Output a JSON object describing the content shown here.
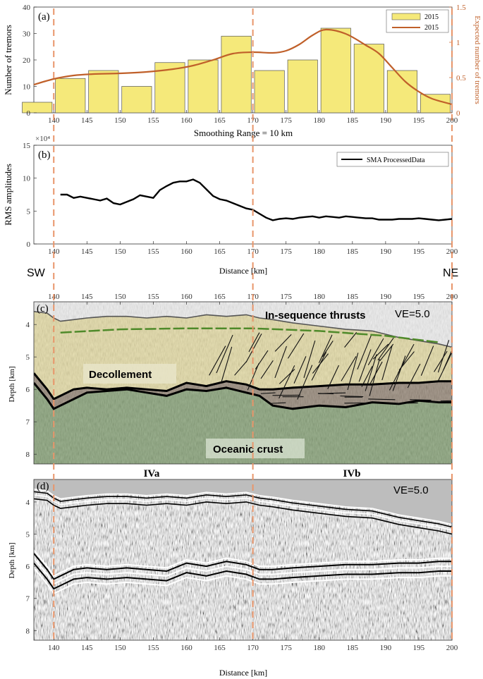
{
  "colors": {
    "bar_fill": "#f5e97a",
    "bar_stroke": "#555555",
    "curve": "#c0602a",
    "right_axis": "#c0602a",
    "guide": "#e8956a",
    "rms_line": "#000000",
    "sediment": "#e6dca0",
    "decollement": "#8f7f6e",
    "crust": "#7f9c6e",
    "green_horizon": "#4f8a2a"
  },
  "chart_data": [
    {
      "id": "a",
      "type": "bar",
      "panel_label": "(a)",
      "x": [
        137.5,
        142.5,
        147.5,
        152.5,
        157.5,
        162.5,
        167.5,
        172.5,
        177.5,
        182.5,
        187.5,
        192.5,
        197.5
      ],
      "values": [
        4,
        13,
        16,
        10,
        19,
        20,
        29,
        16,
        20,
        32,
        26,
        16,
        7
      ],
      "xlim": [
        137,
        200
      ],
      "ylim": [
        0,
        40
      ],
      "y_ticks": [
        "0",
        "10",
        "20",
        "30",
        "40"
      ],
      "x_ticks": [
        "140",
        "145",
        "150",
        "155",
        "160",
        "165",
        "170",
        "175",
        "180",
        "185",
        "190",
        "195",
        "200"
      ],
      "ylabel": "Number of tremors",
      "xlabel": "Smoothing Range = 10 km",
      "legend_position": "top-right",
      "series": [
        {
          "name": "2015",
          "type": "bar"
        },
        {
          "name": "2015",
          "type": "line",
          "axis": "right",
          "x": [
            137,
            140,
            143,
            146,
            150,
            154,
            158,
            161,
            164,
            167,
            170,
            173,
            175,
            177,
            179,
            181,
            184,
            187,
            189,
            191,
            193,
            195,
            197,
            200
          ],
          "y": [
            0.4,
            0.48,
            0.53,
            0.55,
            0.56,
            0.58,
            0.62,
            0.67,
            0.75,
            0.84,
            0.86,
            0.85,
            0.88,
            0.97,
            1.1,
            1.18,
            1.12,
            0.96,
            0.84,
            0.64,
            0.44,
            0.3,
            0.2,
            0.12
          ]
        }
      ],
      "y2lim": [
        0,
        1.5
      ],
      "y2_ticks": [
        "0",
        "0.5",
        "1",
        "1.5"
      ],
      "y2label": "Expected number of tremors"
    },
    {
      "id": "b",
      "type": "line",
      "panel_label": "(b)",
      "exponent": "×10⁴",
      "xlim": [
        137,
        200
      ],
      "ylim": [
        0,
        15
      ],
      "y_ticks": [
        "0",
        "5",
        "10",
        "15"
      ],
      "x_ticks": [
        "140",
        "145",
        "150",
        "155",
        "160",
        "165",
        "170",
        "175",
        "180",
        "185",
        "190",
        "195",
        "200"
      ],
      "ylabel": "RMS amplitudes",
      "xlabel": "Distance [km]",
      "legend_position": "top-right",
      "series": [
        {
          "name": "SMA ProcessedData",
          "x": [
            141,
            142,
            143,
            144,
            145,
            146,
            147,
            148,
            149,
            150,
            151,
            152,
            153,
            154,
            155,
            156,
            157,
            158,
            159,
            160,
            161,
            162,
            163,
            164,
            165,
            166,
            167,
            168,
            169,
            170,
            171,
            172,
            173,
            174,
            175,
            176,
            177,
            178,
            179,
            180,
            181,
            182,
            183,
            184,
            185,
            186,
            187,
            188,
            189,
            190,
            191,
            192,
            193,
            194,
            195,
            196,
            197,
            198,
            199,
            200
          ],
          "y": [
            7.5,
            7.5,
            7.0,
            7.2,
            7.0,
            6.8,
            6.6,
            6.9,
            6.2,
            6.0,
            6.4,
            6.8,
            7.4,
            7.2,
            7.0,
            8.2,
            8.8,
            9.3,
            9.5,
            9.5,
            9.8,
            9.3,
            8.3,
            7.3,
            6.8,
            6.6,
            6.2,
            5.8,
            5.4,
            5.2,
            4.6,
            4.0,
            3.6,
            3.8,
            3.9,
            3.8,
            4.0,
            4.1,
            4.2,
            4.0,
            4.2,
            4.1,
            4.0,
            4.2,
            4.1,
            4.0,
            3.9,
            3.9,
            3.7,
            3.7,
            3.7,
            3.8,
            3.8,
            3.8,
            3.9,
            3.8,
            3.7,
            3.6,
            3.7,
            3.8
          ]
        }
      ]
    },
    {
      "id": "c",
      "type": "area",
      "panel_label": "(c)",
      "xlim": [
        137,
        200
      ],
      "ylim": [
        8.3,
        3.3
      ],
      "y_ticks": [
        "4",
        "5",
        "6",
        "7",
        "8"
      ],
      "x_ticks": [
        "140",
        "145",
        "150",
        "155",
        "160",
        "165",
        "170",
        "175",
        "180",
        "185",
        "190",
        "195",
        "200"
      ],
      "x_ticks_position": "top",
      "ylabel": "Depth [km]",
      "x": [
        137,
        139,
        140,
        141,
        143,
        145,
        148,
        151,
        154,
        157,
        160,
        163,
        166,
        169,
        171,
        173,
        176,
        180,
        184,
        188,
        192,
        195,
        198,
        200
      ],
      "seafloor": [
        3.6,
        3.65,
        3.8,
        3.9,
        3.85,
        3.8,
        3.75,
        3.75,
        3.8,
        3.75,
        3.8,
        3.7,
        3.75,
        3.7,
        3.8,
        3.85,
        3.95,
        4.05,
        4.15,
        4.2,
        4.4,
        4.5,
        4.6,
        4.7
      ],
      "decollement_top": [
        5.5,
        6.0,
        6.3,
        6.2,
        6.0,
        5.95,
        6.0,
        5.95,
        6.0,
        6.05,
        5.8,
        5.9,
        5.75,
        5.85,
        6.0,
        6.0,
        5.95,
        5.9,
        5.85,
        5.85,
        5.8,
        5.8,
        5.75,
        5.75
      ],
      "decollement_base": [
        5.8,
        6.3,
        6.6,
        6.5,
        6.3,
        6.1,
        6.05,
        6.0,
        6.1,
        6.2,
        6.0,
        6.05,
        5.95,
        6.1,
        6.2,
        6.5,
        6.6,
        6.5,
        6.55,
        6.4,
        6.45,
        6.35,
        6.4,
        6.4
      ],
      "annotations": [
        "In-sequence thrusts",
        "Decollement",
        "Oceanic crust",
        "VE=5.0"
      ],
      "zones": [
        "IVa",
        "IVb"
      ]
    },
    {
      "id": "d",
      "type": "heatmap",
      "panel_label": "(d)",
      "xlim": [
        137,
        200
      ],
      "ylim": [
        8.3,
        3.3
      ],
      "y_ticks": [
        "4",
        "5",
        "6",
        "7",
        "8"
      ],
      "x_ticks": [
        "140",
        "145",
        "150",
        "155",
        "160",
        "165",
        "170",
        "175",
        "180",
        "185",
        "190",
        "195",
        "200"
      ],
      "ylabel": "Depth [km]",
      "xlabel": "Distance [km]",
      "annotation": "VE=5.0"
    }
  ],
  "direction_labels": {
    "left": "SW",
    "right": "NE"
  },
  "guide_lines_km": [
    140,
    170,
    200
  ]
}
